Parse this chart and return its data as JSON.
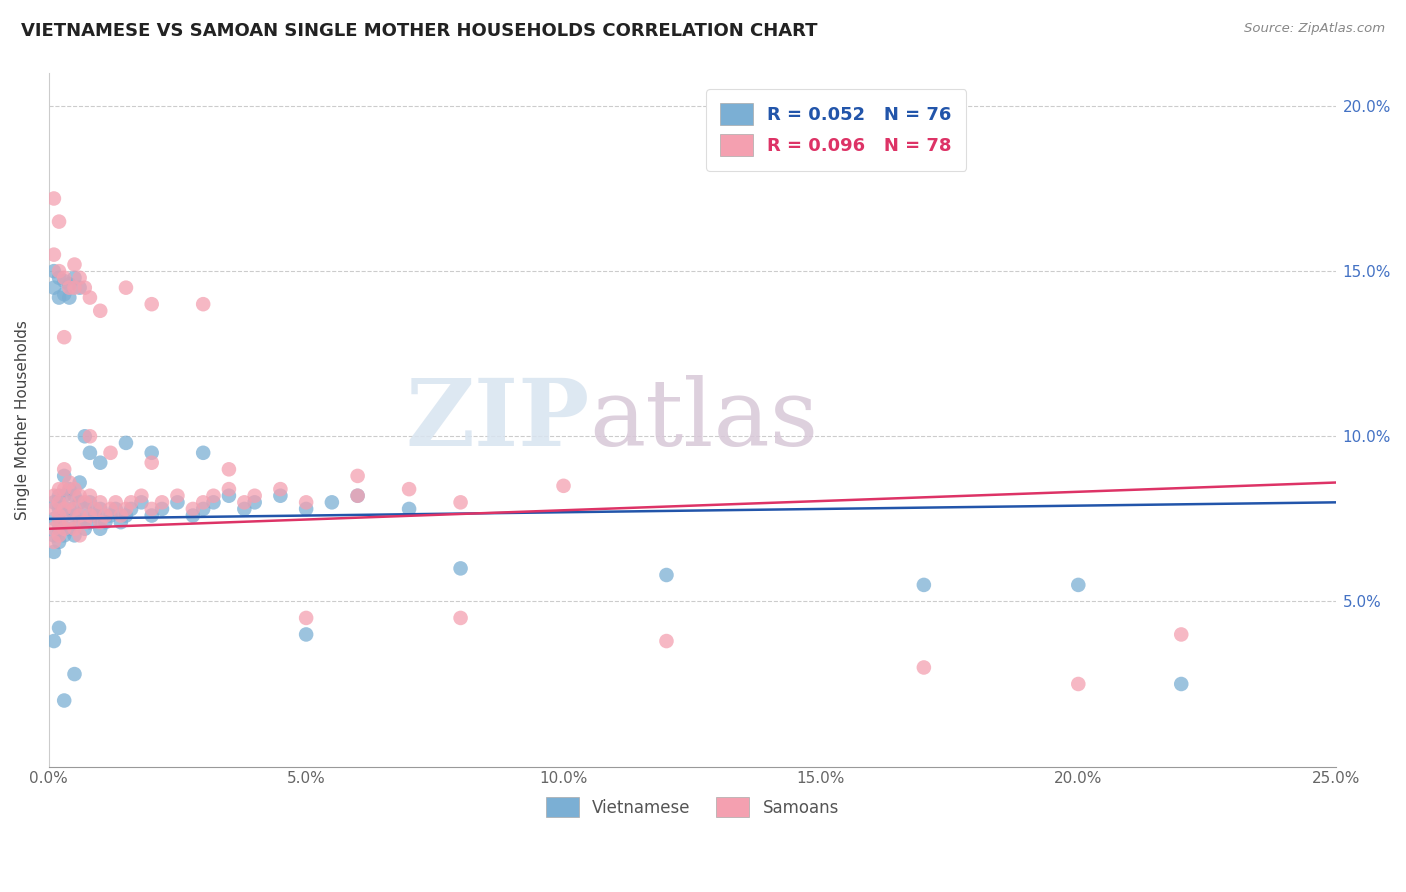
{
  "title": "VIETNAMESE VS SAMOAN SINGLE MOTHER HOUSEHOLDS CORRELATION CHART",
  "source_text": "Source: ZipAtlas.com",
  "ylabel": "Single Mother Households",
  "xlim": [
    0.0,
    0.25
  ],
  "ylim": [
    0.0,
    0.21
  ],
  "xtick_vals": [
    0.0,
    0.05,
    0.1,
    0.15,
    0.2,
    0.25
  ],
  "xtick_labels": [
    "0.0%",
    "5.0%",
    "10.0%",
    "15.0%",
    "20.0%",
    "25.0%"
  ],
  "ytick_vals": [
    0.05,
    0.1,
    0.15,
    0.2
  ],
  "ytick_labels": [
    "5.0%",
    "10.0%",
    "15.0%",
    "20.0%"
  ],
  "vietnamese_color": "#7bafd4",
  "samoan_color": "#f4a0b0",
  "line_vietnamese_color": "#2255aa",
  "line_samoan_color": "#dd3366",
  "legend_line1": "R = 0.052   N = 76",
  "legend_line2": "R = 0.096   N = 78",
  "watermark_zip": "ZIP",
  "watermark_atlas": "atlas",
  "background_color": "#ffffff",
  "grid_color": "#cccccc",
  "viet_x": [
    0.001,
    0.001,
    0.001,
    0.001,
    0.002,
    0.002,
    0.002,
    0.002,
    0.002,
    0.003,
    0.003,
    0.003,
    0.003,
    0.004,
    0.004,
    0.004,
    0.005,
    0.005,
    0.005,
    0.006,
    0.006,
    0.006,
    0.007,
    0.007,
    0.008,
    0.008,
    0.009,
    0.01,
    0.01,
    0.011,
    0.012,
    0.013,
    0.014,
    0.015,
    0.016,
    0.018,
    0.02,
    0.022,
    0.025,
    0.028,
    0.03,
    0.032,
    0.035,
    0.038,
    0.04,
    0.045,
    0.05,
    0.055,
    0.06,
    0.07,
    0.001,
    0.001,
    0.002,
    0.002,
    0.003,
    0.003,
    0.004,
    0.004,
    0.005,
    0.006,
    0.007,
    0.008,
    0.01,
    0.015,
    0.02,
    0.03,
    0.05,
    0.08,
    0.12,
    0.17,
    0.2,
    0.22,
    0.001,
    0.002,
    0.003,
    0.005
  ],
  "viet_y": [
    0.075,
    0.07,
    0.065,
    0.08,
    0.075,
    0.068,
    0.072,
    0.078,
    0.082,
    0.07,
    0.076,
    0.082,
    0.088,
    0.072,
    0.078,
    0.084,
    0.07,
    0.076,
    0.082,
    0.074,
    0.08,
    0.086,
    0.072,
    0.078,
    0.074,
    0.08,
    0.076,
    0.072,
    0.078,
    0.074,
    0.076,
    0.078,
    0.074,
    0.076,
    0.078,
    0.08,
    0.076,
    0.078,
    0.08,
    0.076,
    0.078,
    0.08,
    0.082,
    0.078,
    0.08,
    0.082,
    0.078,
    0.08,
    0.082,
    0.078,
    0.15,
    0.145,
    0.148,
    0.142,
    0.147,
    0.143,
    0.146,
    0.142,
    0.148,
    0.145,
    0.1,
    0.095,
    0.092,
    0.098,
    0.095,
    0.095,
    0.04,
    0.06,
    0.058,
    0.055,
    0.055,
    0.025,
    0.038,
    0.042,
    0.02,
    0.028
  ],
  "samo_x": [
    0.001,
    0.001,
    0.001,
    0.001,
    0.002,
    0.002,
    0.002,
    0.002,
    0.002,
    0.003,
    0.003,
    0.003,
    0.003,
    0.004,
    0.004,
    0.004,
    0.005,
    0.005,
    0.005,
    0.006,
    0.006,
    0.006,
    0.007,
    0.007,
    0.008,
    0.008,
    0.009,
    0.01,
    0.01,
    0.011,
    0.012,
    0.013,
    0.014,
    0.015,
    0.016,
    0.018,
    0.02,
    0.022,
    0.025,
    0.028,
    0.03,
    0.032,
    0.035,
    0.038,
    0.04,
    0.045,
    0.05,
    0.06,
    0.07,
    0.08,
    0.001,
    0.002,
    0.003,
    0.004,
    0.005,
    0.006,
    0.007,
    0.008,
    0.01,
    0.015,
    0.02,
    0.03,
    0.05,
    0.08,
    0.12,
    0.17,
    0.2,
    0.22,
    0.001,
    0.002,
    0.003,
    0.005,
    0.008,
    0.012,
    0.02,
    0.035,
    0.06,
    0.1
  ],
  "samo_y": [
    0.078,
    0.072,
    0.068,
    0.082,
    0.076,
    0.07,
    0.074,
    0.08,
    0.084,
    0.072,
    0.078,
    0.084,
    0.09,
    0.074,
    0.08,
    0.086,
    0.072,
    0.078,
    0.084,
    0.076,
    0.082,
    0.07,
    0.074,
    0.08,
    0.076,
    0.082,
    0.078,
    0.074,
    0.08,
    0.076,
    0.078,
    0.08,
    0.076,
    0.078,
    0.08,
    0.082,
    0.078,
    0.08,
    0.082,
    0.078,
    0.08,
    0.082,
    0.084,
    0.08,
    0.082,
    0.084,
    0.08,
    0.082,
    0.084,
    0.08,
    0.155,
    0.15,
    0.148,
    0.145,
    0.152,
    0.148,
    0.145,
    0.142,
    0.138,
    0.145,
    0.14,
    0.14,
    0.045,
    0.045,
    0.038,
    0.03,
    0.025,
    0.04,
    0.172,
    0.165,
    0.13,
    0.145,
    0.1,
    0.095,
    0.092,
    0.09,
    0.088,
    0.085
  ]
}
